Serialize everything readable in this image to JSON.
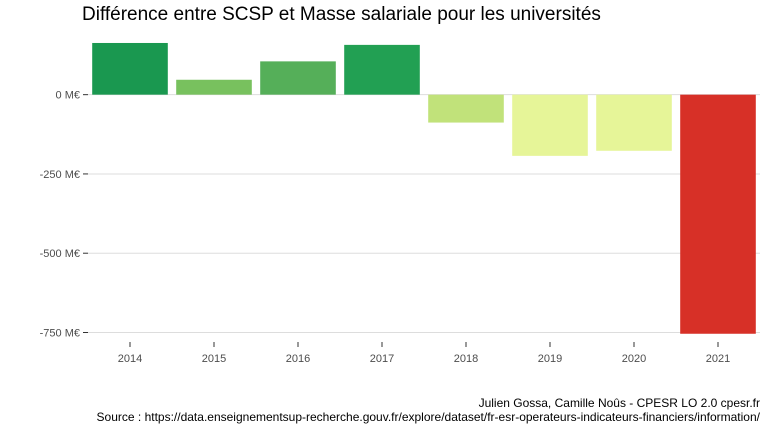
{
  "chart_data": {
    "type": "bar",
    "title": "Différence entre SCSP et Masse salariale pour les universités",
    "xlabel": "",
    "ylabel": "",
    "categories": [
      "2014",
      "2015",
      "2016",
      "2017",
      "2018",
      "2019",
      "2020",
      "2021"
    ],
    "values": [
      163,
      47,
      105,
      157,
      -88,
      -193,
      -177,
      -754
    ],
    "bar_colors": [
      "#1a9850",
      "#78c15e",
      "#55af59",
      "#22a053",
      "#c1e27a",
      "#e6f598",
      "#e6f598",
      "#d73027"
    ],
    "ylim": [
      -780,
      185
    ],
    "y_ticks": [
      0,
      -250,
      -500,
      -750
    ],
    "y_tick_labels": [
      "0 M€",
      "-250 M€",
      "-500 M€",
      "-750 M€"
    ],
    "grid": true,
    "legend": "none"
  },
  "caption": {
    "line1": "Julien Gossa, Camille Noûs - CPESR LO 2.0 cpesr.fr",
    "line2": "Source : https://data.enseignementsup-recherche.gouv.fr/explore/dataset/fr-esr-operateurs-indicateurs-financiers/information/"
  }
}
